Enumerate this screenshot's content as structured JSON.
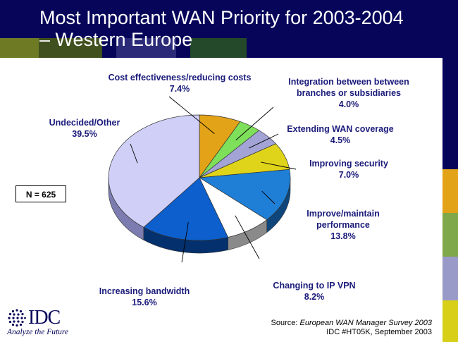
{
  "slide": {
    "title": "Most Important WAN Priority for 2003-2004 – Western Europe",
    "sample_note": "N = 625",
    "source_prefix": "Source: ",
    "source_title": "European WAN Manager Survey 2003",
    "source_doc": "IDC #HT05K, September 2003",
    "logo_text": "IDC",
    "logo_tagline": "Analyze the Future",
    "logo_icon": "idc-globe-icon"
  },
  "colors": {
    "header_bg": "#06055a",
    "label_text": "#1a1a7a",
    "accent_orange": "#e3a318",
    "accent_green": "#7fa84a",
    "accent_lavender": "#9a9ac8",
    "accent_yellow": "#d8d018"
  },
  "chart_data": {
    "type": "pie",
    "title": "",
    "start_angle_deg": 0,
    "direction": "clockwise",
    "three_d": true,
    "slices": [
      {
        "label": "Cost effectiveness/reducing costs",
        "value": 7.4,
        "display": "7.4%",
        "color": "#e3a318",
        "side": "#8e6406"
      },
      {
        "label": "Integration between between branches or subsidiaries",
        "value": 4.0,
        "display": "4.0%",
        "color": "#7ee05a",
        "side": "#3f8030"
      },
      {
        "label": "Extending WAN coverage",
        "value": 4.5,
        "display": "4.5%",
        "color": "#a3a3d6",
        "side": "#5c5c8e"
      },
      {
        "label": "Improving security",
        "value": 7.0,
        "display": "7.0%",
        "color": "#e0d41a",
        "side": "#86800c"
      },
      {
        "label": "Improve/maintain performance",
        "value": 13.8,
        "display": "13.8%",
        "color": "#1f7fd6",
        "side": "#0e467c"
      },
      {
        "label": "Changing to IP VPN",
        "value": 8.2,
        "display": "8.2%",
        "color": "#ffffff",
        "side": "#8a8a8a"
      },
      {
        "label": "Increasing bandwidth",
        "value": 15.6,
        "display": "15.6%",
        "color": "#0c5fcc",
        "side": "#05306e"
      },
      {
        "label": "Undecided/Other",
        "value": 39.5,
        "display": "39.5%",
        "color": "#cfcff8",
        "side": "#7c7cb0"
      }
    ]
  }
}
